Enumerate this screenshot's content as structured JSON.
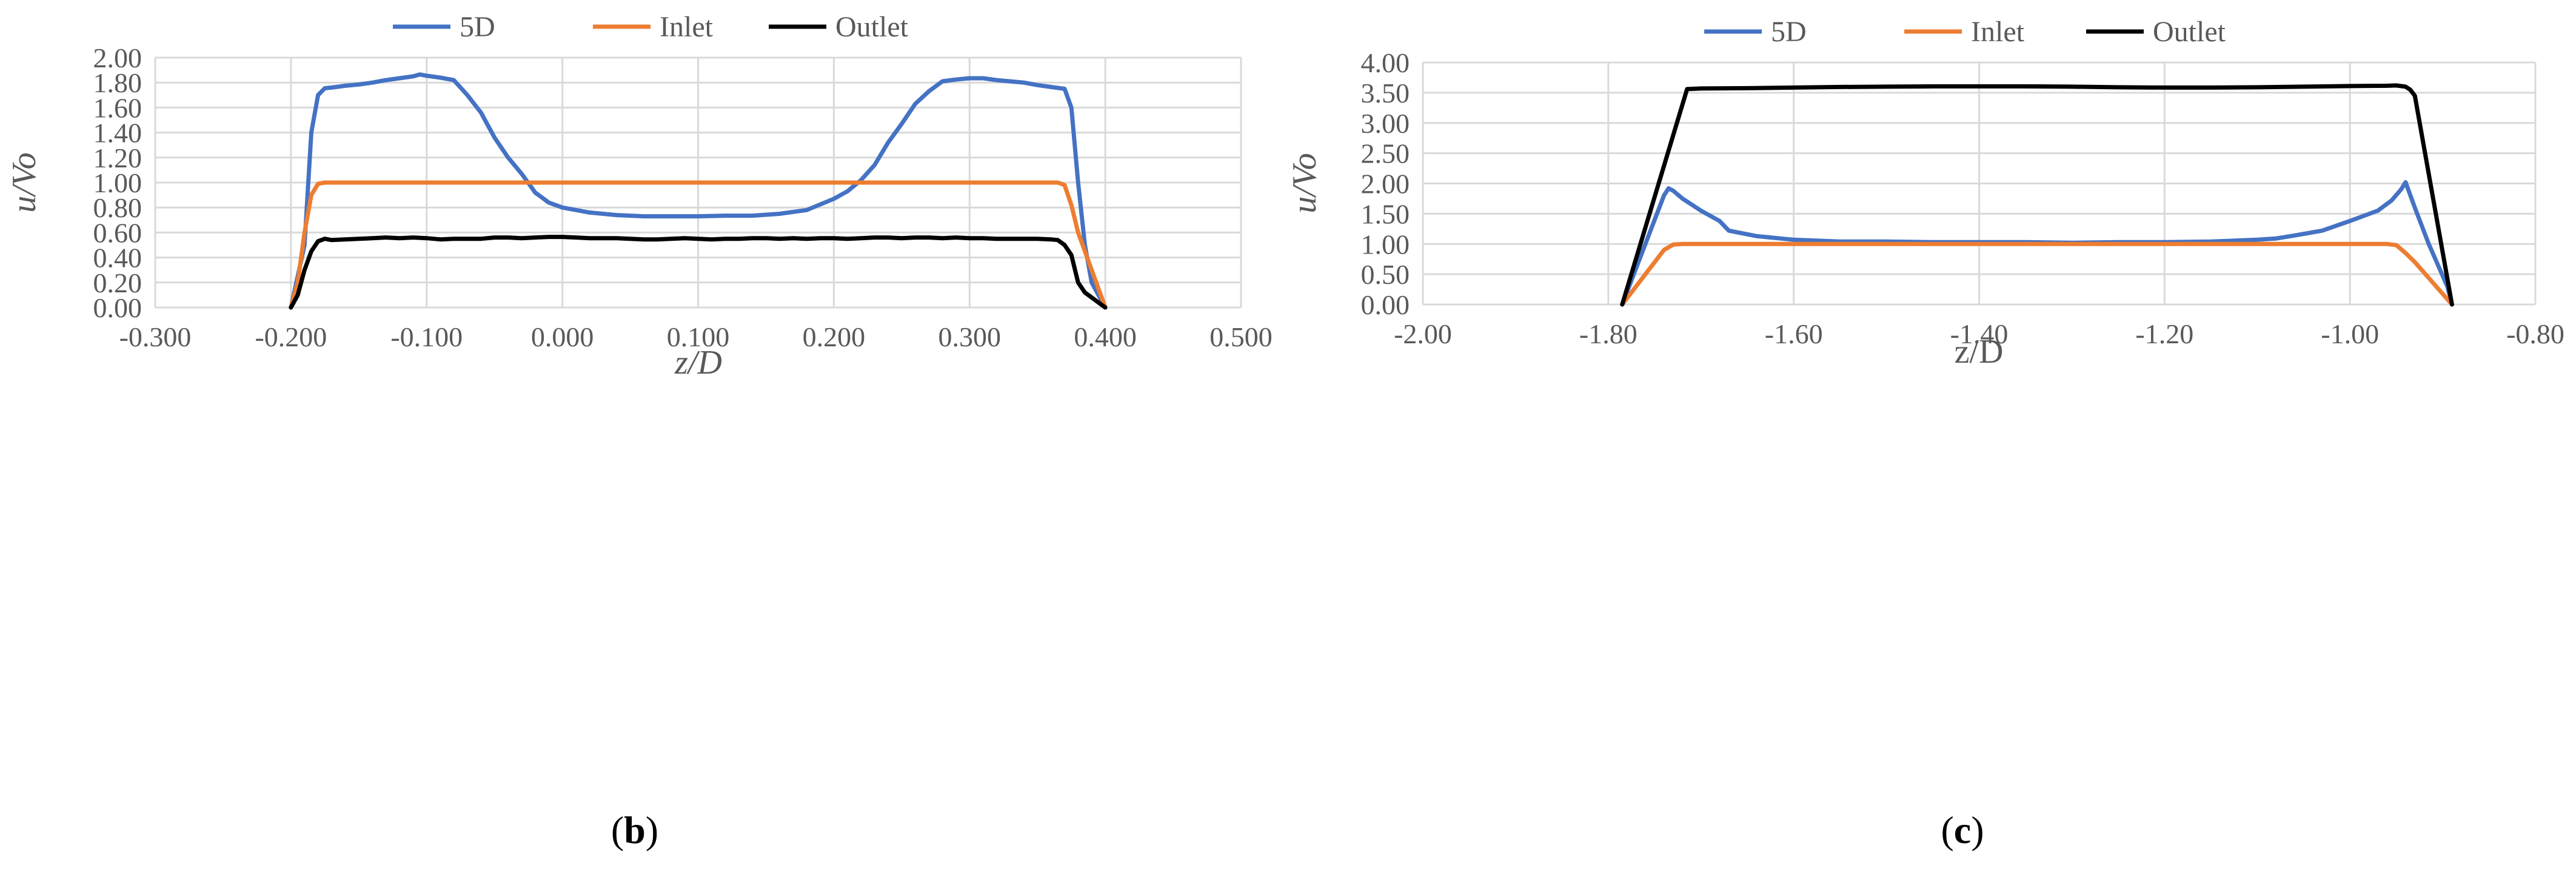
{
  "colors": {
    "5D": "#4472c4",
    "Inlet": "#ed7d31",
    "Outlet": "#000000"
  },
  "chart_data": [
    {
      "type": "line",
      "caption_open": "(",
      "caption_letter": "b",
      "caption_close": ")",
      "xlabel": "z/D",
      "ylabel": "u/Vo",
      "xlim": [
        -0.3,
        0.5
      ],
      "ylim": [
        0,
        2.0
      ],
      "x_ticks": [
        "-0.300",
        "-0.200",
        "-0.100",
        "0.000",
        "0.100",
        "0.200",
        "0.300",
        "0.400",
        "0.500"
      ],
      "y_ticks": [
        "0.00",
        "0.20",
        "0.40",
        "0.60",
        "0.80",
        "1.00",
        "1.20",
        "1.40",
        "1.60",
        "1.80",
        "2.00"
      ],
      "grid": true,
      "legend_position": "top-center",
      "series": [
        {
          "name": "5D",
          "x": [
            -0.2,
            -0.19,
            -0.185,
            -0.18,
            -0.175,
            -0.17,
            -0.16,
            -0.15,
            -0.14,
            -0.13,
            -0.12,
            -0.11,
            -0.105,
            -0.1,
            -0.09,
            -0.08,
            -0.07,
            -0.06,
            -0.05,
            -0.04,
            -0.03,
            -0.02,
            -0.01,
            0.0,
            0.02,
            0.04,
            0.06,
            0.08,
            0.1,
            0.12,
            0.14,
            0.16,
            0.18,
            0.2,
            0.21,
            0.22,
            0.23,
            0.24,
            0.25,
            0.26,
            0.27,
            0.28,
            0.29,
            0.3,
            0.31,
            0.32,
            0.33,
            0.34,
            0.35,
            0.36,
            0.37,
            0.375,
            0.38,
            0.385,
            0.39,
            0.4
          ],
          "y": [
            0.0,
            0.5,
            1.4,
            1.7,
            1.755,
            1.76,
            1.775,
            1.785,
            1.8,
            1.82,
            1.835,
            1.85,
            1.865,
            1.855,
            1.84,
            1.82,
            1.7,
            1.56,
            1.36,
            1.2,
            1.07,
            0.92,
            0.84,
            0.8,
            0.76,
            0.74,
            0.73,
            0.73,
            0.73,
            0.735,
            0.735,
            0.75,
            0.78,
            0.87,
            0.93,
            1.02,
            1.14,
            1.32,
            1.47,
            1.63,
            1.73,
            1.81,
            1.825,
            1.835,
            1.835,
            1.82,
            1.81,
            1.8,
            1.78,
            1.765,
            1.75,
            1.6,
            1.0,
            0.5,
            0.2,
            0.0
          ]
        },
        {
          "name": "Inlet",
          "x": [
            -0.2,
            -0.195,
            -0.19,
            -0.185,
            -0.18,
            -0.175,
            -0.15,
            0.0,
            0.15,
            0.3,
            0.36,
            0.365,
            0.37,
            0.375,
            0.38,
            0.39,
            0.4
          ],
          "y": [
            0.0,
            0.2,
            0.6,
            0.9,
            0.99,
            1.0,
            1.0,
            1.0,
            1.0,
            1.0,
            1.0,
            1.0,
            0.98,
            0.82,
            0.6,
            0.3,
            0.0
          ],
          "baseline": 1.0
        },
        {
          "name": "Outlet",
          "x": [
            -0.2,
            -0.195,
            -0.19,
            -0.185,
            -0.18,
            -0.175,
            -0.17,
            -0.16,
            -0.15,
            -0.14,
            -0.13,
            -0.12,
            -0.11,
            -0.1,
            -0.09,
            -0.08,
            -0.07,
            -0.06,
            -0.05,
            -0.04,
            -0.03,
            -0.02,
            -0.01,
            0.0,
            0.01,
            0.02,
            0.03,
            0.04,
            0.05,
            0.06,
            0.07,
            0.08,
            0.09,
            0.1,
            0.11,
            0.12,
            0.13,
            0.14,
            0.15,
            0.16,
            0.17,
            0.18,
            0.19,
            0.2,
            0.21,
            0.22,
            0.23,
            0.24,
            0.25,
            0.26,
            0.27,
            0.28,
            0.29,
            0.3,
            0.31,
            0.32,
            0.33,
            0.34,
            0.35,
            0.36,
            0.365,
            0.37,
            0.375,
            0.38,
            0.385,
            0.39,
            0.395,
            0.4
          ],
          "y": [
            0.0,
            0.1,
            0.3,
            0.45,
            0.53,
            0.55,
            0.54,
            0.545,
            0.55,
            0.555,
            0.56,
            0.555,
            0.56,
            0.555,
            0.545,
            0.55,
            0.55,
            0.55,
            0.56,
            0.56,
            0.555,
            0.56,
            0.565,
            0.565,
            0.56,
            0.555,
            0.555,
            0.555,
            0.55,
            0.545,
            0.545,
            0.55,
            0.555,
            0.55,
            0.545,
            0.55,
            0.55,
            0.555,
            0.555,
            0.55,
            0.555,
            0.55,
            0.555,
            0.555,
            0.55,
            0.555,
            0.56,
            0.56,
            0.555,
            0.56,
            0.56,
            0.555,
            0.56,
            0.555,
            0.555,
            0.55,
            0.55,
            0.55,
            0.55,
            0.545,
            0.54,
            0.5,
            0.42,
            0.2,
            0.12,
            0.08,
            0.04,
            0.0
          ]
        }
      ]
    },
    {
      "type": "line",
      "caption_open": "(",
      "caption_letter": "c",
      "caption_close": ")",
      "xlabel": "z/D",
      "ylabel": "u/Vo",
      "xlim": [
        -2.0,
        -0.8
      ],
      "ylim": [
        0,
        4.0
      ],
      "x_ticks": [
        "-2.00",
        "-1.80",
        "-1.60",
        "-1.40",
        "-1.20",
        "-1.00",
        "-0.80"
      ],
      "y_ticks": [
        "0.00",
        "0.50",
        "1.00",
        "1.50",
        "2.00",
        "2.50",
        "3.00",
        "3.50",
        "4.00"
      ],
      "grid": true,
      "legend_position": "top-center",
      "series": [
        {
          "name": "5D",
          "x": [
            -1.785,
            -1.76,
            -1.74,
            -1.735,
            -1.73,
            -1.72,
            -1.7,
            -1.68,
            -1.67,
            -1.64,
            -1.6,
            -1.55,
            -1.5,
            -1.45,
            -1.4,
            -1.35,
            -1.3,
            -1.25,
            -1.2,
            -1.15,
            -1.1,
            -1.08,
            -1.06,
            -1.03,
            -1.0,
            -0.97,
            -0.955,
            -0.945,
            -0.94,
            -0.93,
            -0.915,
            -0.895,
            -0.89
          ],
          "y": [
            0.0,
            1.0,
            1.8,
            1.92,
            1.88,
            1.75,
            1.55,
            1.38,
            1.22,
            1.13,
            1.07,
            1.04,
            1.04,
            1.03,
            1.03,
            1.03,
            1.02,
            1.03,
            1.03,
            1.04,
            1.07,
            1.09,
            1.14,
            1.22,
            1.38,
            1.55,
            1.72,
            1.9,
            2.02,
            1.6,
            1.0,
            0.3,
            0.0
          ]
        },
        {
          "name": "Inlet",
          "x": [
            -1.785,
            -1.76,
            -1.74,
            -1.73,
            -1.72,
            -1.7,
            -1.5,
            -1.3,
            -1.1,
            -0.96,
            -0.95,
            -0.94,
            -0.93,
            -0.91,
            -0.89
          ],
          "y": [
            0.0,
            0.5,
            0.9,
            0.99,
            1.0,
            1.0,
            1.0,
            1.0,
            1.0,
            1.0,
            0.98,
            0.85,
            0.7,
            0.35,
            0.0
          ],
          "baseline": 1.0
        },
        {
          "name": "Outlet",
          "x": [
            -1.785,
            -1.715,
            -1.7,
            -1.65,
            -1.6,
            -1.55,
            -1.5,
            -1.45,
            -1.4,
            -1.35,
            -1.3,
            -1.25,
            -1.2,
            -1.15,
            -1.1,
            -1.05,
            -1.0,
            -0.96,
            -0.95,
            -0.94,
            -0.935,
            -0.93,
            -0.89
          ],
          "y": [
            0.0,
            3.56,
            3.57,
            3.575,
            3.585,
            3.595,
            3.6,
            3.605,
            3.605,
            3.605,
            3.6,
            3.59,
            3.585,
            3.585,
            3.59,
            3.6,
            3.61,
            3.615,
            3.62,
            3.6,
            3.55,
            3.45,
            0.0
          ]
        }
      ]
    }
  ]
}
